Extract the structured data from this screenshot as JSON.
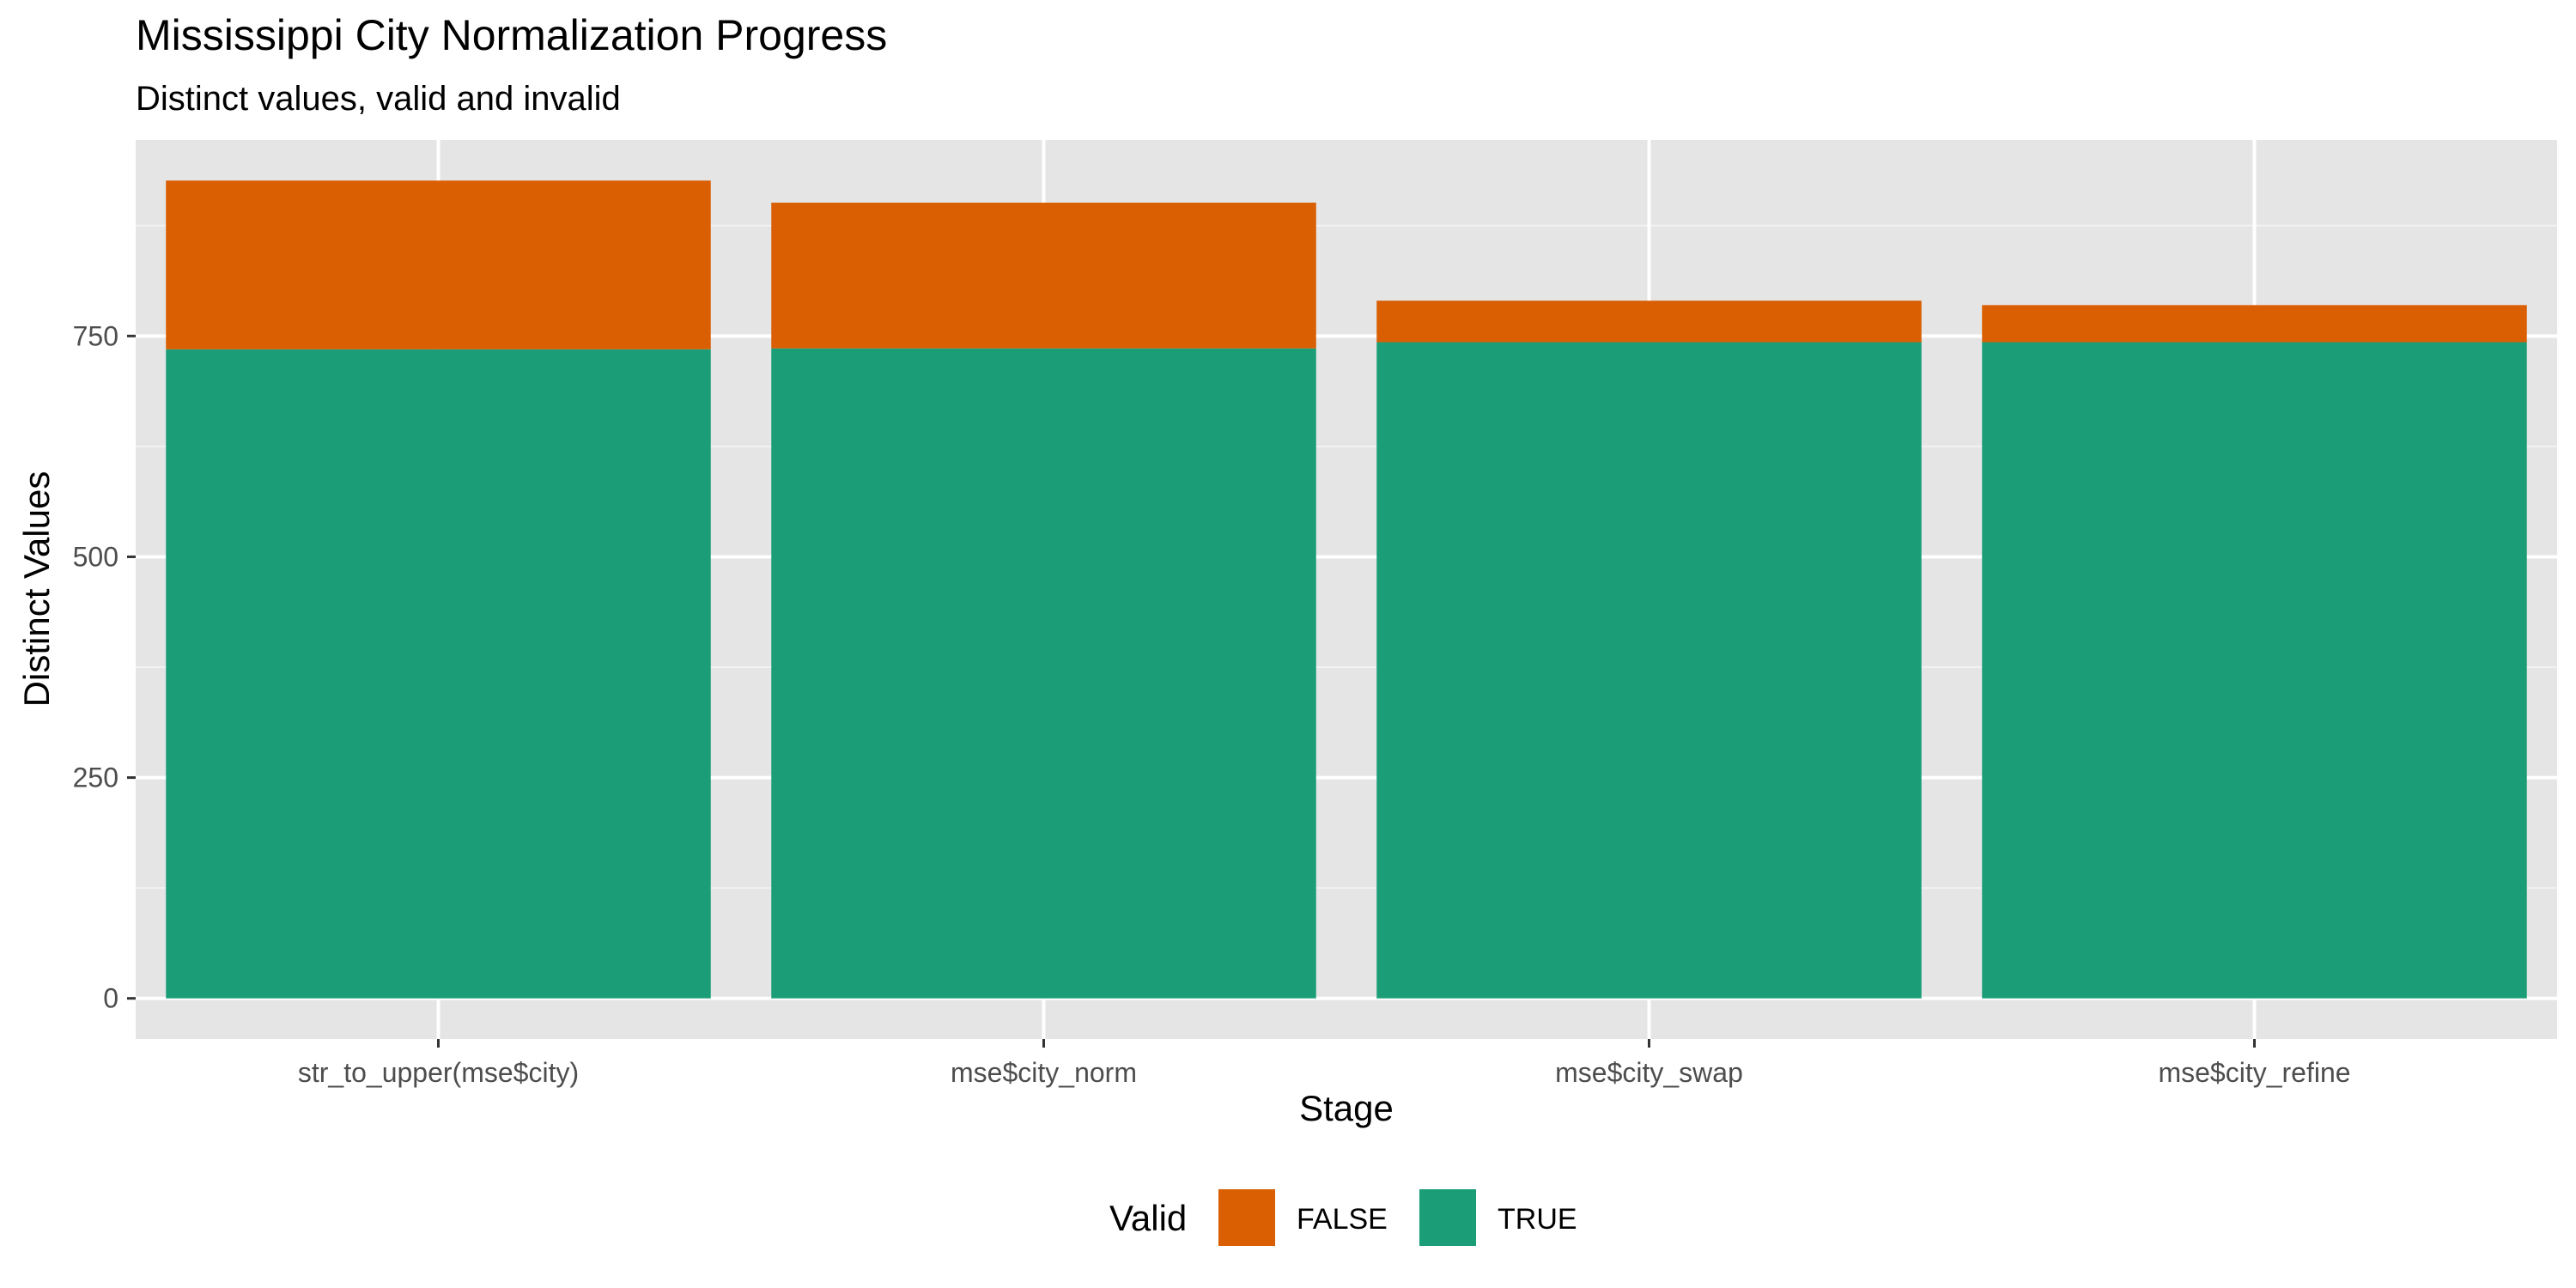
{
  "chart_data": {
    "type": "bar",
    "stacked": true,
    "title": "Mississippi City Normalization Progress",
    "subtitle": "Distinct values, valid and invalid",
    "xlabel": "Stage",
    "ylabel": "Distinct Values",
    "categories": [
      "str_to_upper(mse$city)",
      "mse$city_norm",
      "mse$city_swap",
      "mse$city_refine"
    ],
    "series": [
      {
        "name": "TRUE",
        "color": "#1b9e77",
        "values": [
          735,
          736,
          743,
          743
        ]
      },
      {
        "name": "FALSE",
        "color": "#d95f02",
        "values": [
          191,
          165,
          47,
          42
        ]
      }
    ],
    "y_ticks": [
      0,
      250,
      500,
      750
    ],
    "ylim": [
      -46,
      972
    ],
    "grid": true,
    "panel_background": "#e5e5e5",
    "legend": {
      "title": "Valid",
      "position": "bottom",
      "entries": [
        {
          "label": "FALSE",
          "color": "#d95f02"
        },
        {
          "label": "TRUE",
          "color": "#1b9e77"
        }
      ]
    }
  }
}
